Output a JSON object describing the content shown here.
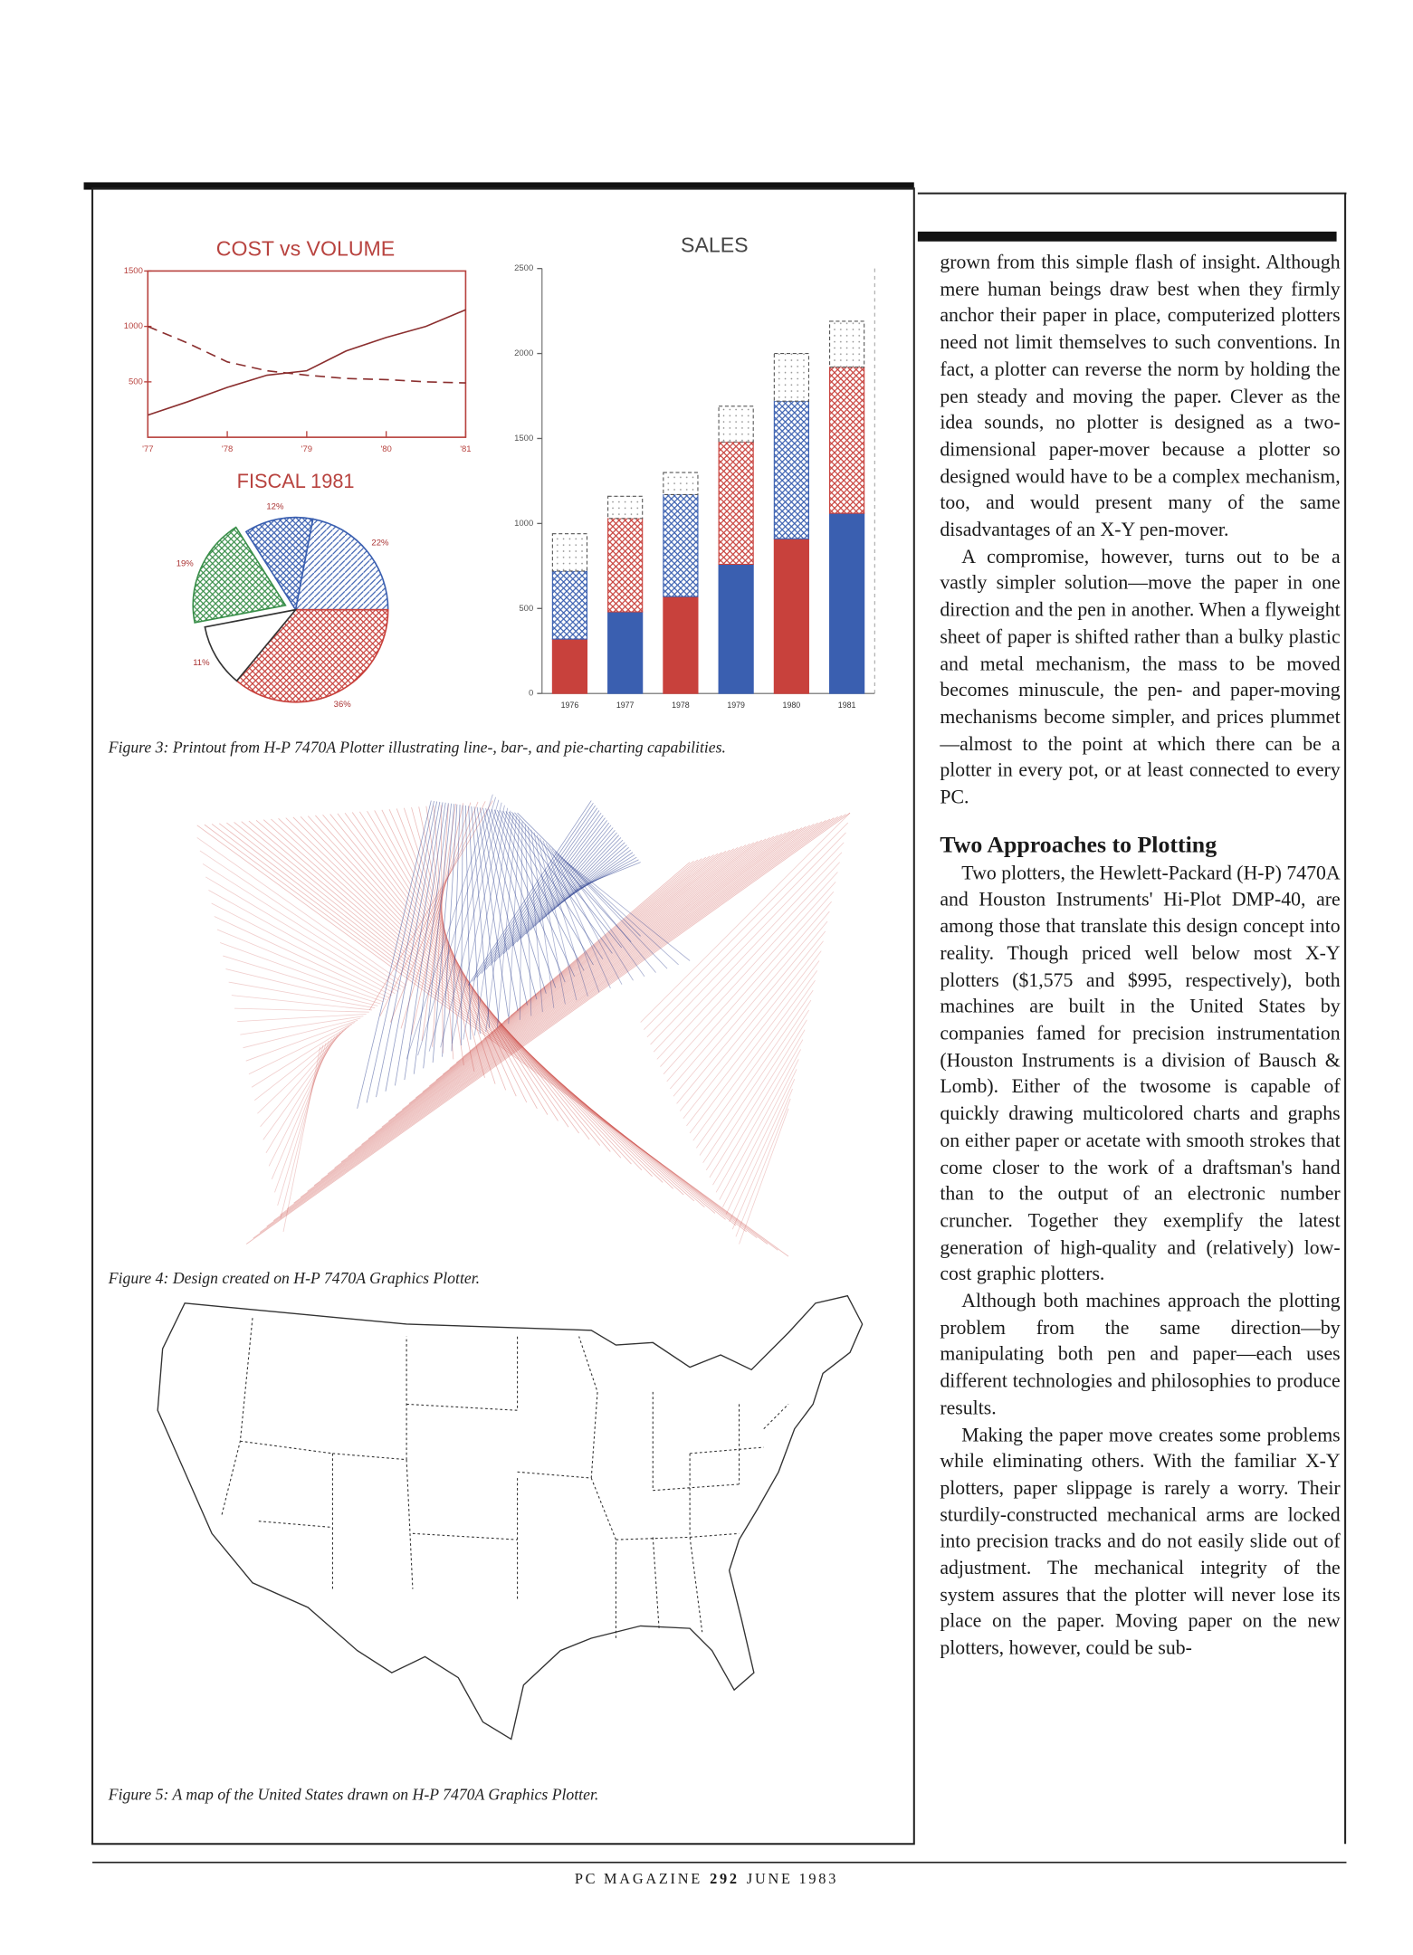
{
  "chart_data": [
    {
      "type": "line",
      "title": "COST vs VOLUME",
      "x": [
        1977,
        1977.5,
        1978,
        1978.5,
        1979,
        1979.5,
        1980,
        1980.5,
        1981
      ],
      "xlim": [
        1977,
        1981
      ],
      "xticks": [
        {
          "value": 1977,
          "label": "'77"
        },
        {
          "value": 1978,
          "label": "'78"
        },
        {
          "value": 1979,
          "label": "'79"
        },
        {
          "value": 1980,
          "label": "'80"
        },
        {
          "value": 1981,
          "label": "'81"
        }
      ],
      "ylim": [
        0,
        1500
      ],
      "yticks": [
        500,
        1000,
        1500
      ],
      "series": [
        {
          "color": "#8b2f2f",
          "style": "solid",
          "values": [
            200,
            320,
            450,
            560,
            600,
            780,
            900,
            1000,
            1150
          ]
        },
        {
          "color": "#8b2f2f",
          "style": "dashed",
          "values": [
            1000,
            850,
            680,
            600,
            560,
            530,
            520,
            500,
            490
          ]
        }
      ]
    },
    {
      "type": "pie",
      "title": "FISCAL 1981",
      "values": [
        12,
        22,
        36,
        11,
        19
      ],
      "value_labels": [
        "12%",
        "22%",
        "36%",
        "11%",
        "19%"
      ],
      "colors": [
        "#3a5fb0",
        "#3a5fb0",
        "#c8413c",
        "#ffffff",
        "#3a8f4a"
      ],
      "patterns": [
        "crosshatch",
        "diagonal",
        "crosshatch",
        "solid",
        "crosshatch"
      ]
    },
    {
      "type": "bar",
      "stacked": true,
      "title": "SALES",
      "categories": [
        "1976",
        "1977",
        "1978",
        "1979",
        "1980",
        "1981"
      ],
      "ylim": [
        0,
        2500
      ],
      "yticks": [
        0,
        500,
        1000,
        1500,
        2000,
        2500
      ],
      "series": [
        {
          "pattern": "solid",
          "colors": [
            "#c8413c",
            "#3a5fb0",
            "#c8413c",
            "#3a5fb0",
            "#c8413c",
            "#3a5fb0"
          ],
          "values": [
            320,
            480,
            570,
            760,
            910,
            1060
          ]
        },
        {
          "pattern": "crosshatch",
          "colors": [
            "#3a5fb0",
            "#c8413c",
            "#3a5fb0",
            "#c8413c",
            "#3a5fb0",
            "#c8413c"
          ],
          "values": [
            400,
            550,
            600,
            720,
            810,
            860
          ]
        },
        {
          "pattern": "dots",
          "color": "#8a8a8a",
          "values": [
            220,
            130,
            130,
            210,
            280,
            270
          ]
        }
      ]
    }
  ],
  "captions": [
    "Figure 3: Printout from H-P 7470A Plotter illustrating line-, bar-, and pie-charting capabilities.",
    "Figure 4: Design created on H-P 7470A Graphics Plotter.",
    "Figure 5: A map of the United States drawn on H-P 7470A Graphics Plotter."
  ],
  "article": {
    "intro": [
      "grown from this simple flash of insight. Although mere human beings draw best when they firmly anchor their paper in place, computerized plotters need not limit themselves to such conventions. In fact, a plotter can reverse the norm by holding the pen steady and moving the paper. Clever as the idea sounds, no plotter is designed as a two-dimensional paper-mover because a plotter so designed would have to be a complex mechanism, too, and would present many of the same disadvantages of an X-Y pen-mover.",
      "A compromise, however, turns out to be a vastly simpler solution—move the paper in one direction and the pen in another. When a flyweight sheet of paper is shifted rather than a bulky plastic and metal mechanism, the mass to be moved becomes minuscule, the pen- and paper-moving mechanisms become simpler, and prices plummet—almost to the point at which there can be a plotter in every pot, or at least connected to every PC."
    ],
    "heading": "Two Approaches to Plotting",
    "body": [
      "Two plotters, the Hewlett-Packard (H-P) 7470A and Houston Instruments' Hi-Plot DMP-40, are among those that translate this design concept into reality. Though priced well below most X-Y plotters ($1,575 and $995, respectively), both machines are built in the United States by companies famed for precision instrumentation (Houston Instruments is a division of Bausch & Lomb). Either of the twosome is capable of quickly drawing multicolored charts and graphs on either paper or acetate with smooth strokes that come closer to the work of a draftsman's hand than to the output of an electronic number cruncher. Together they exemplify the latest generation of high-quality and (relatively) low-cost graphic plotters.",
      "Although both machines approach the plotting problem from the same direction—by manipulating both pen and paper—each uses different technologies and philosophies to produce results.",
      "Making the paper move creates some problems while eliminating others. With the familiar X-Y plotters, paper slippage is rarely a worry. Their sturdily-constructed mechanical arms are locked into precision tracks and do not easily slide out of adjustment. The mechanical integrity of the system assures that the plotter will never lose its place on the paper. Moving paper on the new plotters, however, could be sub-"
    ]
  },
  "footer": {
    "magazine": "PC MAGAZINE",
    "page": 292,
    "date": "JUNE 1983"
  }
}
